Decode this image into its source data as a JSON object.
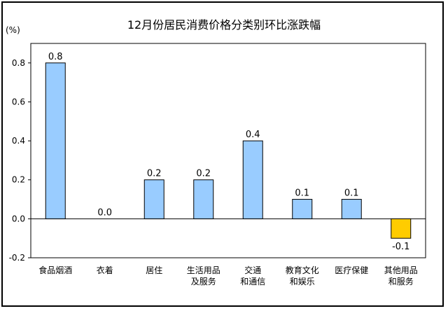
{
  "chart_data": {
    "type": "bar",
    "title": "12月份居民消费价格分类别环比涨跌幅",
    "unit_label": "(%)",
    "ylim": [
      -0.2,
      0.9
    ],
    "yticks": [
      -0.2,
      0.0,
      0.2,
      0.4,
      0.6,
      0.8
    ],
    "ytick_labels": [
      "-0.2",
      "0.0",
      "0.2",
      "0.4",
      "0.6",
      "0.8"
    ],
    "grid": false,
    "categories": [
      [
        "食品烟酒"
      ],
      [
        "衣着"
      ],
      [
        "居住"
      ],
      [
        "生活用品",
        "及服务"
      ],
      [
        "交通",
        "和通信"
      ],
      [
        "教育文化",
        "和娱乐"
      ],
      [
        "医疗保健"
      ],
      [
        "其他用品",
        "和服务"
      ]
    ],
    "values": [
      0.8,
      0.0,
      0.2,
      0.2,
      0.4,
      0.1,
      0.1,
      -0.1
    ],
    "value_labels": [
      "0.8",
      "0.0",
      "0.2",
      "0.2",
      "0.4",
      "0.1",
      "0.1",
      "-0.1"
    ],
    "colors": {
      "positive": "#99CCFF",
      "negative": "#FFCC00",
      "stroke": "#000000"
    }
  }
}
